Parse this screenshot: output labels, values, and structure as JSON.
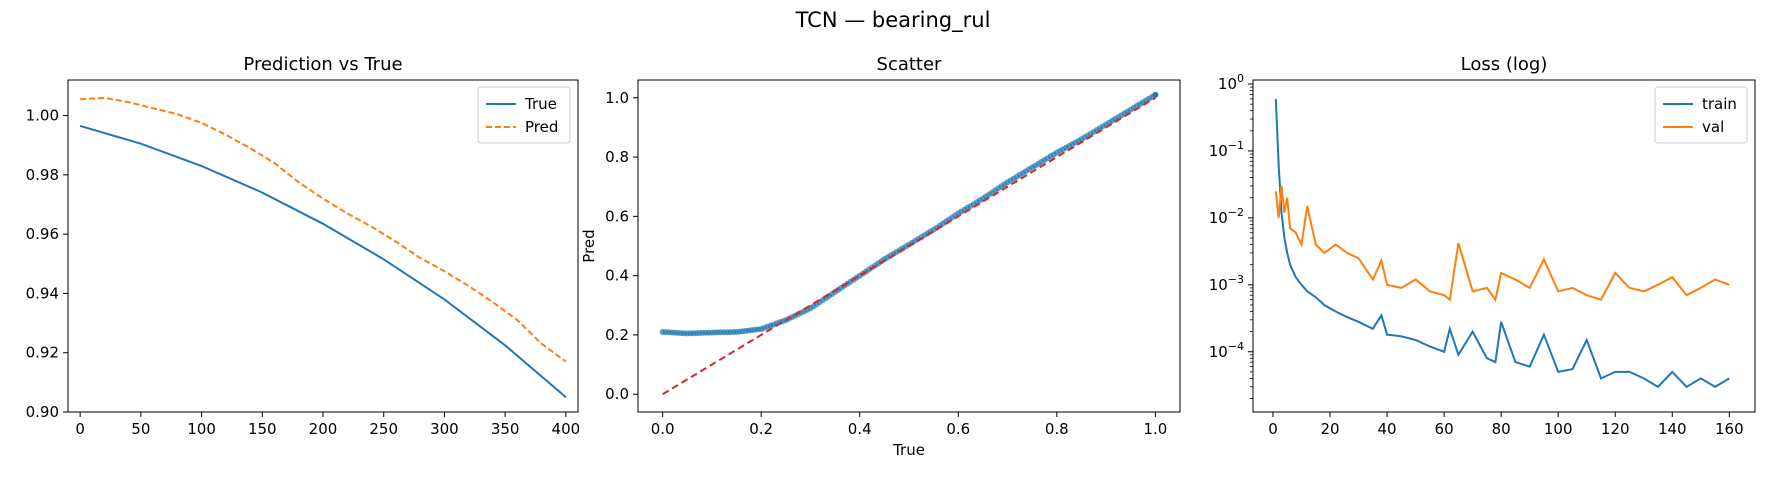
{
  "figure": {
    "suptitle": "TCN — bearing_rul"
  },
  "chart_data": [
    {
      "type": "line",
      "title": "Prediction vs True",
      "xlabel": "",
      "ylabel": "",
      "xlim": [
        -10,
        410
      ],
      "ylim": [
        0.9,
        1.012
      ],
      "xticks": [
        0,
        50,
        100,
        150,
        200,
        250,
        300,
        350,
        400
      ],
      "yticks": [
        0.9,
        0.92,
        0.94,
        0.96,
        0.98,
        1.0
      ],
      "ytick_labels": [
        "0.90",
        "0.92",
        "0.94",
        "0.96",
        "0.98",
        "1.00"
      ],
      "grid": false,
      "legend": "top-right",
      "series": [
        {
          "name": "True",
          "color": "#1f77b4",
          "style": "solid",
          "x": [
            0,
            50,
            100,
            150,
            200,
            250,
            300,
            350,
            400
          ],
          "y": [
            0.9965,
            0.9905,
            0.983,
            0.974,
            0.9635,
            0.9515,
            0.938,
            0.9225,
            0.905
          ]
        },
        {
          "name": "Pred",
          "color": "#ff7f0e",
          "style": "dashed",
          "x": [
            0,
            20,
            40,
            60,
            80,
            100,
            120,
            140,
            160,
            180,
            200,
            220,
            240,
            260,
            280,
            300,
            320,
            340,
            360,
            380,
            400
          ],
          "y": [
            1.0055,
            1.006,
            1.0045,
            1.0025,
            1.0005,
            0.9975,
            0.9935,
            0.989,
            0.984,
            0.9775,
            0.972,
            0.967,
            0.9625,
            0.9575,
            0.952,
            0.9475,
            0.9425,
            0.937,
            0.931,
            0.923,
            0.917
          ]
        }
      ]
    },
    {
      "type": "scatter",
      "title": "Scatter",
      "xlabel": "True",
      "ylabel": "Pred",
      "xlim": [
        -0.05,
        1.05
      ],
      "ylim": [
        -0.06,
        1.06
      ],
      "xticks": [
        0.0,
        0.2,
        0.4,
        0.6,
        0.8,
        1.0
      ],
      "xtick_labels": [
        "0.0",
        "0.2",
        "0.4",
        "0.6",
        "0.8",
        "1.0"
      ],
      "yticks": [
        0.0,
        0.2,
        0.4,
        0.6,
        0.8,
        1.0
      ],
      "ytick_labels": [
        "0.0",
        "0.2",
        "0.4",
        "0.6",
        "0.8",
        "1.0"
      ],
      "grid": false,
      "points_color": "#1f77b4",
      "points": {
        "x": [
          0.0,
          0.05,
          0.1,
          0.15,
          0.2,
          0.25,
          0.3,
          0.35,
          0.4,
          0.45,
          0.5,
          0.55,
          0.6,
          0.65,
          0.7,
          0.75,
          0.8,
          0.85,
          0.9,
          0.95,
          1.0
        ],
        "y": [
          0.21,
          0.205,
          0.208,
          0.21,
          0.22,
          0.25,
          0.29,
          0.345,
          0.4,
          0.455,
          0.505,
          0.555,
          0.61,
          0.66,
          0.715,
          0.765,
          0.815,
          0.86,
          0.91,
          0.96,
          1.01
        ]
      },
      "reference_line": {
        "x": [
          0,
          1
        ],
        "y": [
          0,
          1
        ],
        "color": "#d62728",
        "style": "dashed"
      }
    },
    {
      "type": "line",
      "title": "Loss (log)",
      "xlabel": "",
      "ylabel": "",
      "yscale": "log",
      "xlim": [
        -7,
        169
      ],
      "ylim_log10": [
        -4.9,
        0.06
      ],
      "xticks": [
        0,
        20,
        40,
        60,
        80,
        100,
        120,
        140,
        160
      ],
      "yticks_exp": [
        -4,
        -3,
        -2,
        -1,
        0
      ],
      "grid": false,
      "legend": "top-right",
      "series": [
        {
          "name": "train",
          "color": "#1f77b4",
          "x": [
            1,
            2,
            3,
            4,
            5,
            6,
            8,
            10,
            12,
            15,
            18,
            22,
            26,
            30,
            35,
            38,
            40,
            45,
            50,
            55,
            60,
            62,
            65,
            70,
            75,
            78,
            80,
            85,
            90,
            95,
            100,
            105,
            110,
            115,
            120,
            125,
            130,
            135,
            140,
            145,
            150,
            155,
            160
          ],
          "y": [
            0.6,
            0.06,
            0.012,
            0.005,
            0.003,
            0.002,
            0.0013,
            0.001,
            0.0008,
            0.00065,
            0.0005,
            0.0004,
            0.00033,
            0.00028,
            0.00022,
            0.00035,
            0.00018,
            0.00017,
            0.00015,
            0.00012,
            0.0001,
            0.00022,
            9e-05,
            0.0002,
            8e-05,
            7e-05,
            0.00028,
            7e-05,
            6e-05,
            0.00018,
            5e-05,
            5.5e-05,
            0.00015,
            4e-05,
            5e-05,
            5e-05,
            4e-05,
            3e-05,
            5e-05,
            3e-05,
            4e-05,
            3e-05,
            4e-05
          ]
        },
        {
          "name": "val",
          "color": "#ff7f0e",
          "x": [
            1,
            2,
            3,
            4,
            5,
            6,
            8,
            10,
            12,
            15,
            18,
            22,
            26,
            30,
            35,
            38,
            40,
            45,
            50,
            55,
            60,
            62,
            65,
            70,
            75,
            78,
            80,
            85,
            90,
            95,
            100,
            105,
            110,
            115,
            120,
            125,
            130,
            135,
            140,
            145,
            150,
            155,
            160
          ],
          "y": [
            0.025,
            0.01,
            0.03,
            0.012,
            0.02,
            0.007,
            0.006,
            0.004,
            0.015,
            0.004,
            0.003,
            0.004,
            0.003,
            0.0025,
            0.0012,
            0.0023,
            0.001,
            0.0009,
            0.0012,
            0.0008,
            0.0007,
            0.0006,
            0.0042,
            0.0008,
            0.0009,
            0.0006,
            0.0015,
            0.0012,
            0.0009,
            0.0024,
            0.0008,
            0.0009,
            0.0007,
            0.0006,
            0.0015,
            0.0009,
            0.0008,
            0.001,
            0.0013,
            0.0007,
            0.0009,
            0.0012,
            0.001
          ]
        }
      ]
    }
  ]
}
